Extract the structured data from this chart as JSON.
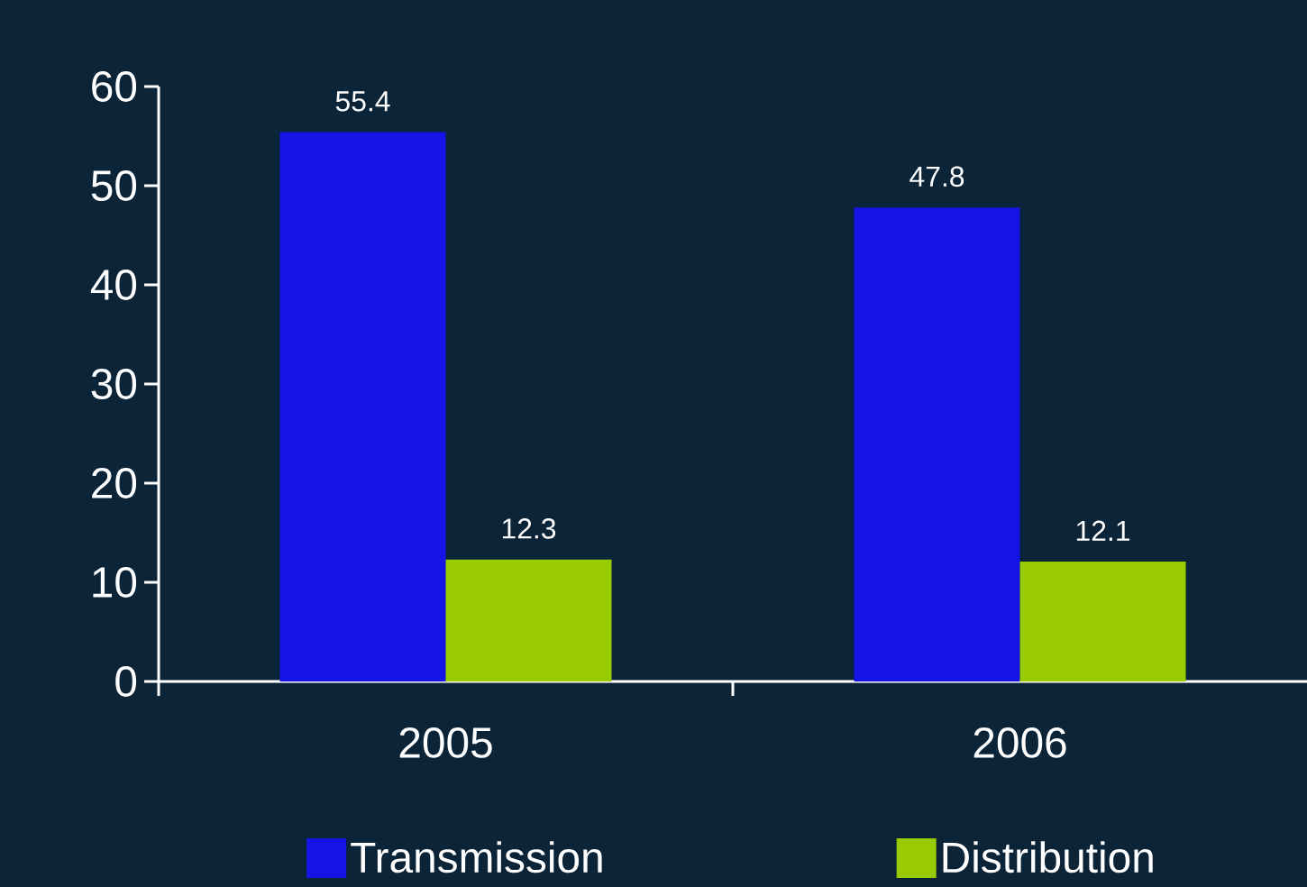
{
  "chart_data": {
    "type": "bar",
    "categories": [
      "2005",
      "2006"
    ],
    "series": [
      {
        "name": "Transmission",
        "color": "#1414e6",
        "values": [
          55.4,
          47.8
        ]
      },
      {
        "name": "Distribution",
        "color": "#99cc00",
        "values": [
          12.3,
          12.1
        ]
      }
    ],
    "ylim": [
      0,
      60
    ],
    "yticks": [
      0,
      10,
      20,
      30,
      40,
      50,
      60
    ],
    "data_labels": true,
    "legend": "bottom",
    "grid": false
  }
}
